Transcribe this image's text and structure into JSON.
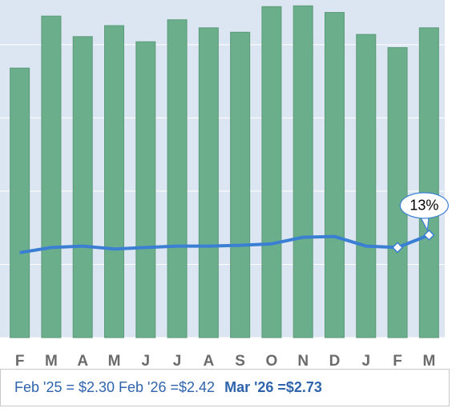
{
  "chart_data": {
    "type": "combo",
    "categories": [
      "F",
      "M",
      "A",
      "M",
      "J",
      "J",
      "A",
      "S",
      "O",
      "N",
      "D",
      "J",
      "F",
      "M"
    ],
    "series": [
      {
        "type": "bar",
        "color": "#6aae8b",
        "values": [
          3.68,
          4.39,
          4.11,
          4.26,
          4.04,
          4.34,
          4.23,
          4.17,
          4.52,
          4.53,
          4.44,
          4.14,
          3.96,
          4.23
        ]
      },
      {
        "type": "line",
        "color": "#3b7fd4",
        "values": [
          1.16,
          1.23,
          1.25,
          1.21,
          1.23,
          1.25,
          1.25,
          1.26,
          1.28,
          1.37,
          1.38,
          1.25,
          1.23,
          1.4
        ]
      }
    ],
    "ylim": [
      0,
      4.61
    ],
    "yticks": [
      0,
      1,
      2,
      3,
      4
    ],
    "grid": true,
    "annotation": "13%",
    "caption": [
      "Feb '25 = $2.30 Feb '26 =$2.42",
      "Mar '26 =$2.73"
    ]
  }
}
